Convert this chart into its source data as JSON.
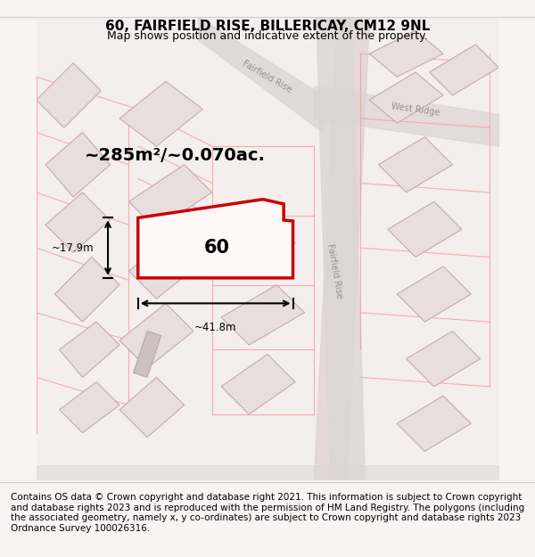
{
  "title": "60, FAIRFIELD RISE, BILLERICAY, CM12 9NL",
  "subtitle": "Map shows position and indicative extent of the property.",
  "footer": "Contains OS data © Crown copyright and database right 2021. This information is subject to Crown copyright and database rights 2023 and is reproduced with the permission of HM Land Registry. The polygons (including the associated geometry, namely x, y co-ordinates) are subject to Crown copyright and database rights 2023 Ordnance Survey 100026316.",
  "area_label": "~285m²/~0.070ac.",
  "width_label": "~41.8m",
  "height_label": "~17.9m",
  "plot_number": "60",
  "bg_color": "#f5f0f0",
  "map_bg": "#ffffff",
  "road_color": "#d4c8c8",
  "building_fill": "#d8d0d0",
  "building_stroke": "#c8b8b8",
  "plot_stroke": "#cc0000",
  "plot_fill": "#ffffff",
  "road_label_color": "#888888",
  "title_fontsize": 11,
  "subtitle_fontsize": 9,
  "footer_fontsize": 7.5
}
